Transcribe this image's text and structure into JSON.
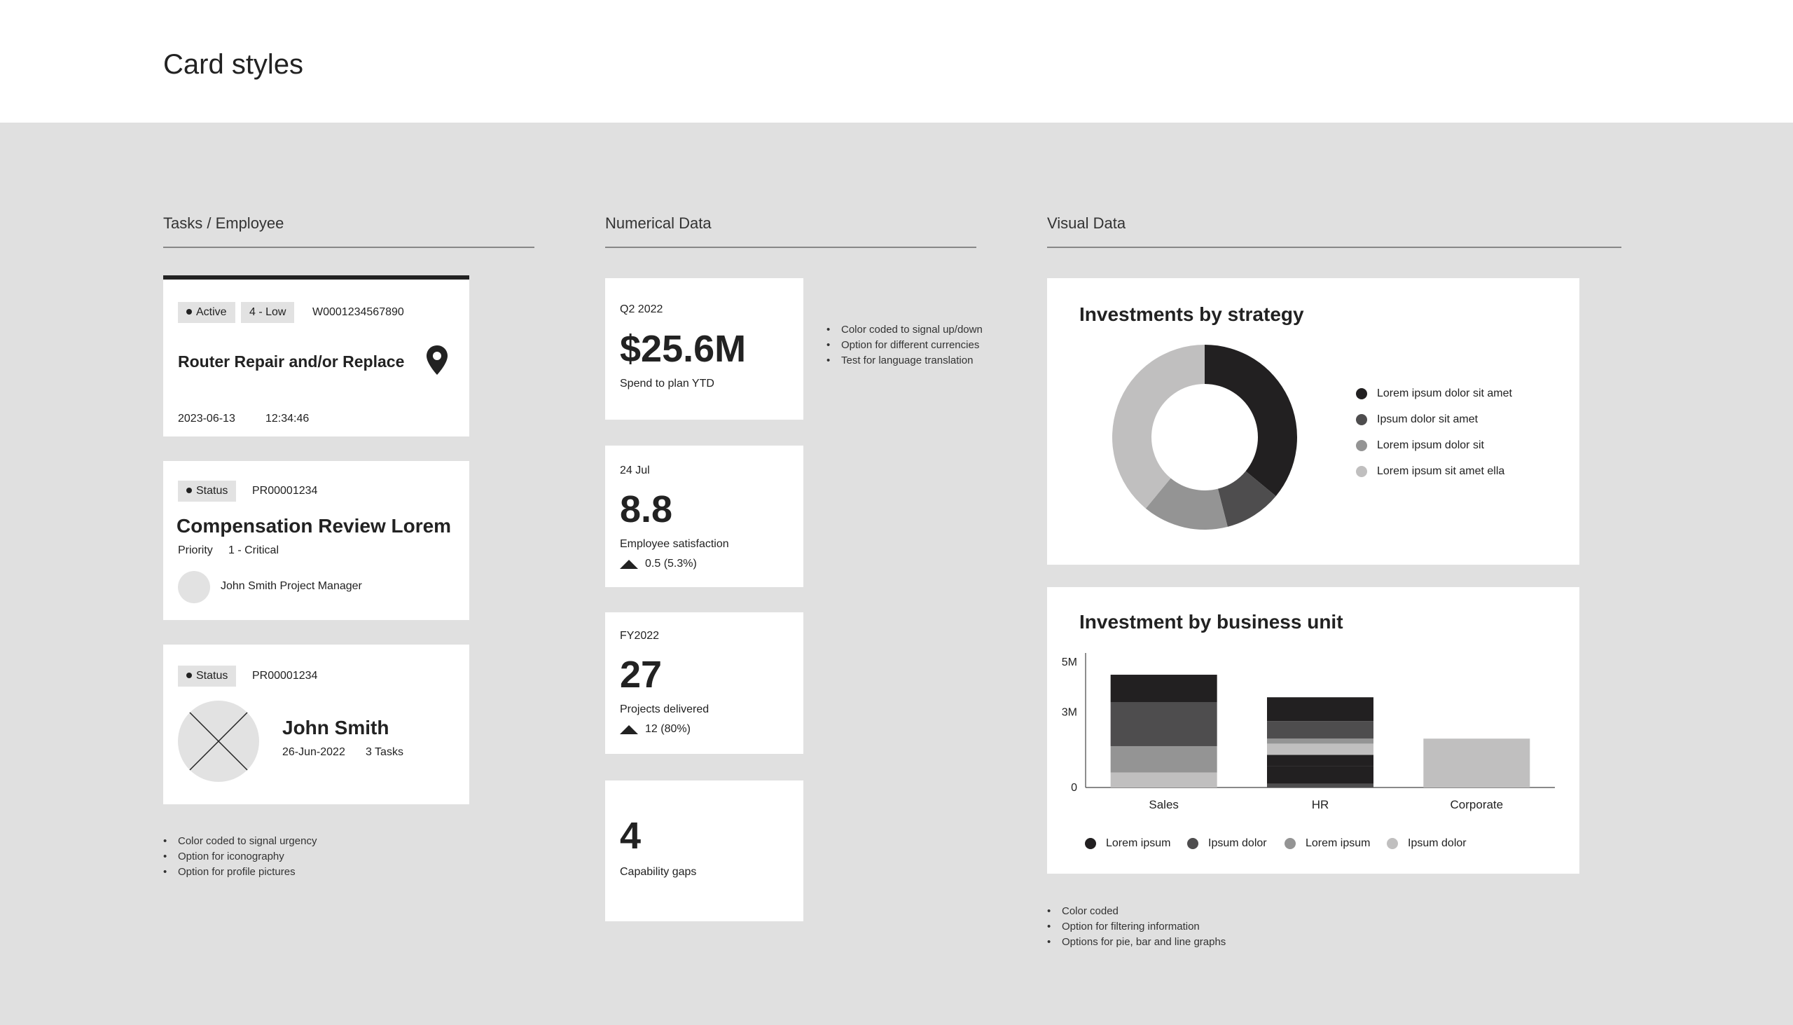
{
  "page": {
    "title": "Card styles"
  },
  "sections": {
    "tasks": "Tasks / Employee",
    "numerical": "Numerical Data",
    "visual": "Visual Data"
  },
  "task_card": {
    "status": "Active",
    "priority": "4 - Low",
    "id": "W0001234567890",
    "title": "Router Repair and/or Replace",
    "date": "2023-06-13",
    "time": "12:34:46",
    "icon": "location-pin-icon"
  },
  "review_card": {
    "status": "Status",
    "id": "PR00001234",
    "title": "Compensation Review Lorem",
    "priority_label": "Priority",
    "priority_value": "1 - Critical",
    "person": "John Smith Project Manager"
  },
  "employee_card": {
    "status": "Status",
    "id": "PR00001234",
    "name": "John Smith",
    "date": "26-Jun-2022",
    "tasks": "3 Tasks"
  },
  "task_notes": [
    "Color coded to signal urgency",
    "Option for iconography",
    "Option for profile pictures"
  ],
  "numeric_cards": [
    {
      "period": "Q2  2022",
      "value": "$25.6M",
      "label": "Spend to plan YTD",
      "trend": ""
    },
    {
      "period": "24 Jul",
      "value": "8.8",
      "label": "Employee satisfaction",
      "trend": "0.5 (5.3%)"
    },
    {
      "period": "FY2022",
      "value": "27",
      "label": "Projects delivered",
      "trend": "12 (80%)"
    },
    {
      "period": "",
      "value": "4",
      "label": "Capability gaps",
      "trend": ""
    }
  ],
  "numeric_notes": [
    "Color coded to signal up/down",
    "Option for different currencies",
    "Test for language translation"
  ],
  "visual_notes": [
    "Color coded",
    "Option for filtering information",
    "Options for pie, bar and line graphs"
  ],
  "chart_data": [
    {
      "type": "pie",
      "title": "Investments by strategy",
      "donut": true,
      "labels": [
        "Lorem ipsum dolor sit amet",
        "Ipsum dolor sit amet",
        "Lorem ipsum dolor sit",
        "Lorem ipsum sit amet ella"
      ],
      "values": [
        36,
        10,
        15,
        39
      ],
      "colors": [
        "#222021",
        "#4e4d4e",
        "#949494",
        "#c0bfbf"
      ],
      "legend_position": "right"
    },
    {
      "type": "bar",
      "stacked": true,
      "title": "Investment by business unit",
      "categories": [
        "Sales",
        "HR",
        "Corporate"
      ],
      "ytick_labels": [
        "0",
        "3M",
        "5M"
      ],
      "ytick_values": [
        0,
        3,
        5
      ],
      "ylim": [
        0,
        5.2
      ],
      "segments": [
        [
          {
            "value": 0.6,
            "color": "#c0bfbf"
          },
          {
            "value": 1.05,
            "color": "#949494"
          },
          {
            "value": 1.75,
            "color": "#4e4d4e"
          },
          {
            "value": 1.1,
            "color": "#222021"
          }
        ],
        [
          {
            "value": 0.15,
            "color": "#4e4d4e"
          },
          {
            "value": 0.7,
            "color": "#222021"
          },
          {
            "value": 0.45,
            "color": "#222021"
          },
          {
            "value": 0.45,
            "color": "#c0bfbf"
          },
          {
            "value": 0.2,
            "color": "#949494"
          },
          {
            "value": 0.7,
            "color": "#4e4d4e"
          },
          {
            "value": 0.95,
            "color": "#222021"
          }
        ],
        [
          {
            "value": 1.95,
            "color": "#c0bfbf"
          }
        ]
      ],
      "legend": [
        {
          "name": "Lorem ipsum",
          "color": "#222021"
        },
        {
          "name": "Ipsum dolor",
          "color": "#4e4d4e"
        },
        {
          "name": "Lorem ipsum",
          "color": "#949494"
        },
        {
          "name": "Ipsum dolor",
          "color": "#c0bfbf"
        }
      ],
      "legend_position": "bottom"
    }
  ]
}
